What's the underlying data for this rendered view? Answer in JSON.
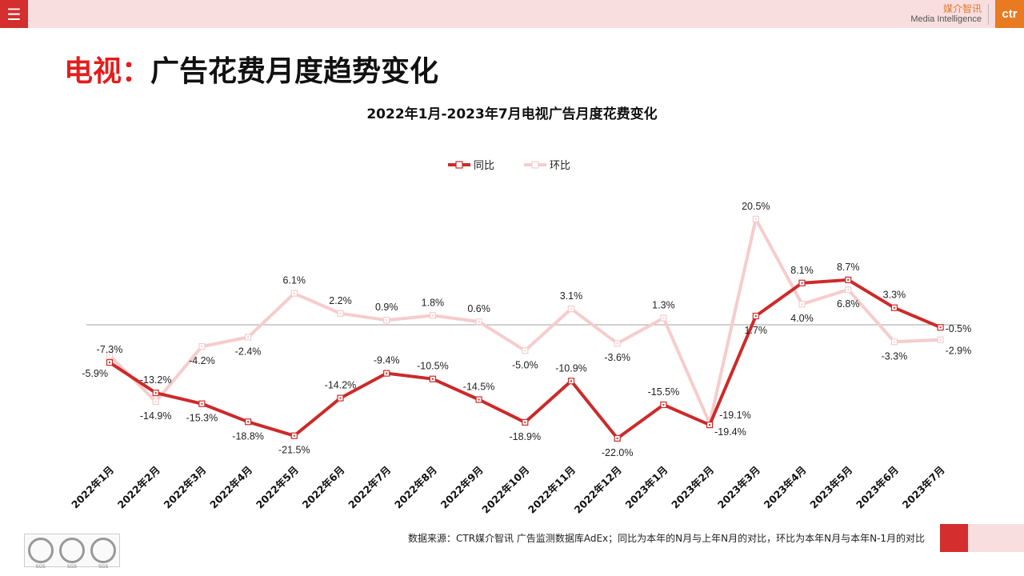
{
  "header": {
    "menu_icon": "hamburger-icon",
    "logo_cn": "媒介智讯",
    "logo_en": "Media Intelligence",
    "logo_mark": "ctr",
    "logo_color": "#e87a22"
  },
  "page_title": {
    "red": "电视：",
    "black": "广告花费月度趋势变化"
  },
  "footer": {
    "source": "数据来源：CTR媒介智讯 广告监测数据库AdEx；同比为本年的N月与上年N月的对比，环比为本年N月与本年N-1月的对比",
    "cert_badges": [
      "SGS",
      "SGS",
      "SGS"
    ]
  },
  "colors": {
    "yoy": "#cc2a2a",
    "mom": "#f6cccc",
    "accent": "#d42e2e",
    "header_bg": "#f8dede"
  },
  "chart_data": {
    "type": "line",
    "title": "2022年1月-2023年7月电视广告月度花费变化",
    "legend_position": "top",
    "categories": [
      "2022年1月",
      "2022年2月",
      "2022年3月",
      "2022年4月",
      "2022年5月",
      "2022年6月",
      "2022年7月",
      "2022年8月",
      "2022年9月",
      "2022年10月",
      "2022年11月",
      "2022年12月",
      "2023年1月",
      "2023年2月",
      "2023年3月",
      "2023年4月",
      "2023年5月",
      "2023年6月",
      "2023年7月"
    ],
    "series": [
      {
        "name": "同比",
        "values": [
          -7.3,
          -13.2,
          -15.3,
          -18.8,
          -21.5,
          -14.2,
          -9.4,
          -10.5,
          -14.5,
          -18.9,
          -10.9,
          -22.0,
          -15.5,
          -19.4,
          1.7,
          8.1,
          8.7,
          3.3,
          -0.5
        ],
        "labels": [
          "-7.3%",
          "-13.2%",
          "-15.3%",
          "-18.8%",
          "-21.5%",
          "-14.2%",
          "-9.4%",
          "-10.5%",
          "-14.5%",
          "-18.9%",
          "-10.9%",
          "-22.0%",
          "-15.5%",
          "-19.4%",
          "1.7%",
          "8.1%",
          "8.7%",
          "3.3%",
          "-0.5%"
        ]
      },
      {
        "name": "环比",
        "values": [
          -5.9,
          -14.9,
          -4.2,
          -2.4,
          6.1,
          2.2,
          0.9,
          1.8,
          0.6,
          -5.0,
          3.1,
          -3.6,
          1.3,
          -19.1,
          20.5,
          4.0,
          6.8,
          -3.3,
          -2.9
        ],
        "labels": [
          "-5.9%",
          "-14.9%",
          "-4.2%",
          "-2.4%",
          "6.1%",
          "2.2%",
          "0.9%",
          "1.8%",
          "0.6%",
          "-5.0%",
          "3.1%",
          "-3.6%",
          "1.3%",
          "-19.1%",
          "20.5%",
          "4.0%",
          "6.8%",
          "-3.3%",
          "-2.9%"
        ]
      }
    ],
    "ylim": [
      -25,
      25
    ],
    "grid": false,
    "zero_line": true
  }
}
